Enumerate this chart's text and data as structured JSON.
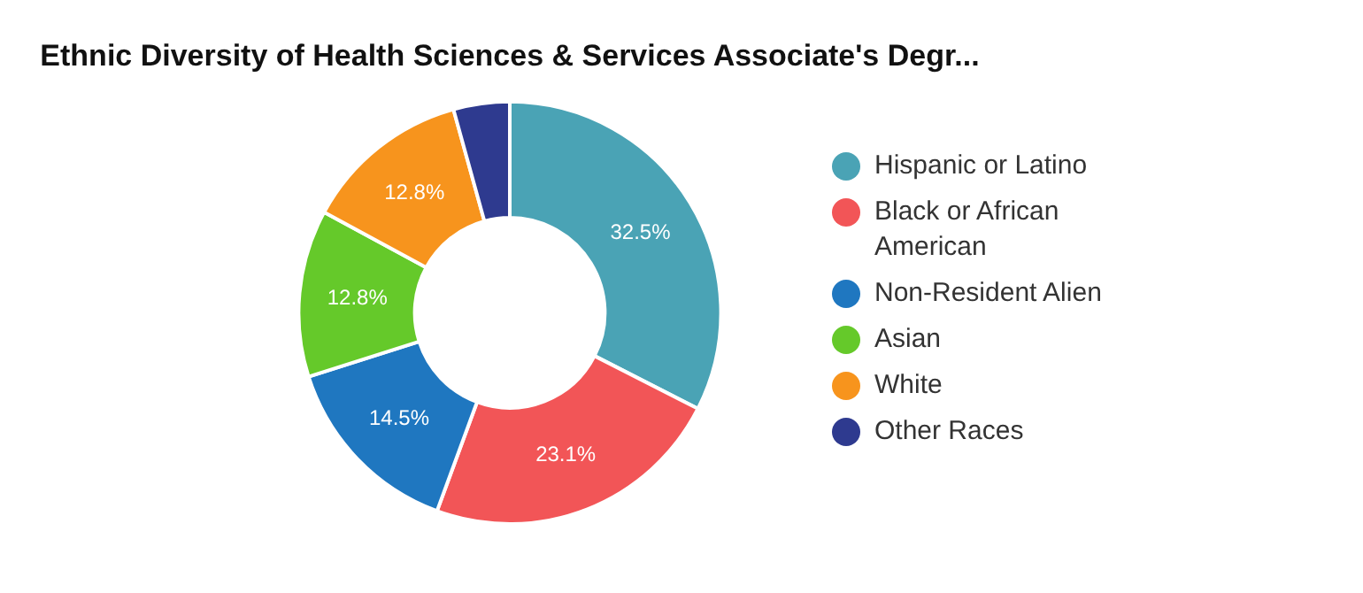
{
  "chart_data": {
    "type": "donut",
    "title": "Ethnic Diversity of Health Sciences & Services Associate's Degr...",
    "categories": [
      "Hispanic or Latino",
      "Black or African American",
      "Non-Resident Alien",
      "Asian",
      "White",
      "Other Races"
    ],
    "values": [
      32.5,
      23.1,
      14.5,
      12.8,
      12.8,
      4.3
    ],
    "colors": [
      "#4aa3b5",
      "#f25557",
      "#1f77c0",
      "#65c92a",
      "#f7941d",
      "#2e3a8f"
    ],
    "value_labels": [
      "32.5%",
      "23.1%",
      "14.5%",
      "12.8%",
      "12.8%",
      null
    ],
    "legend": "right"
  }
}
